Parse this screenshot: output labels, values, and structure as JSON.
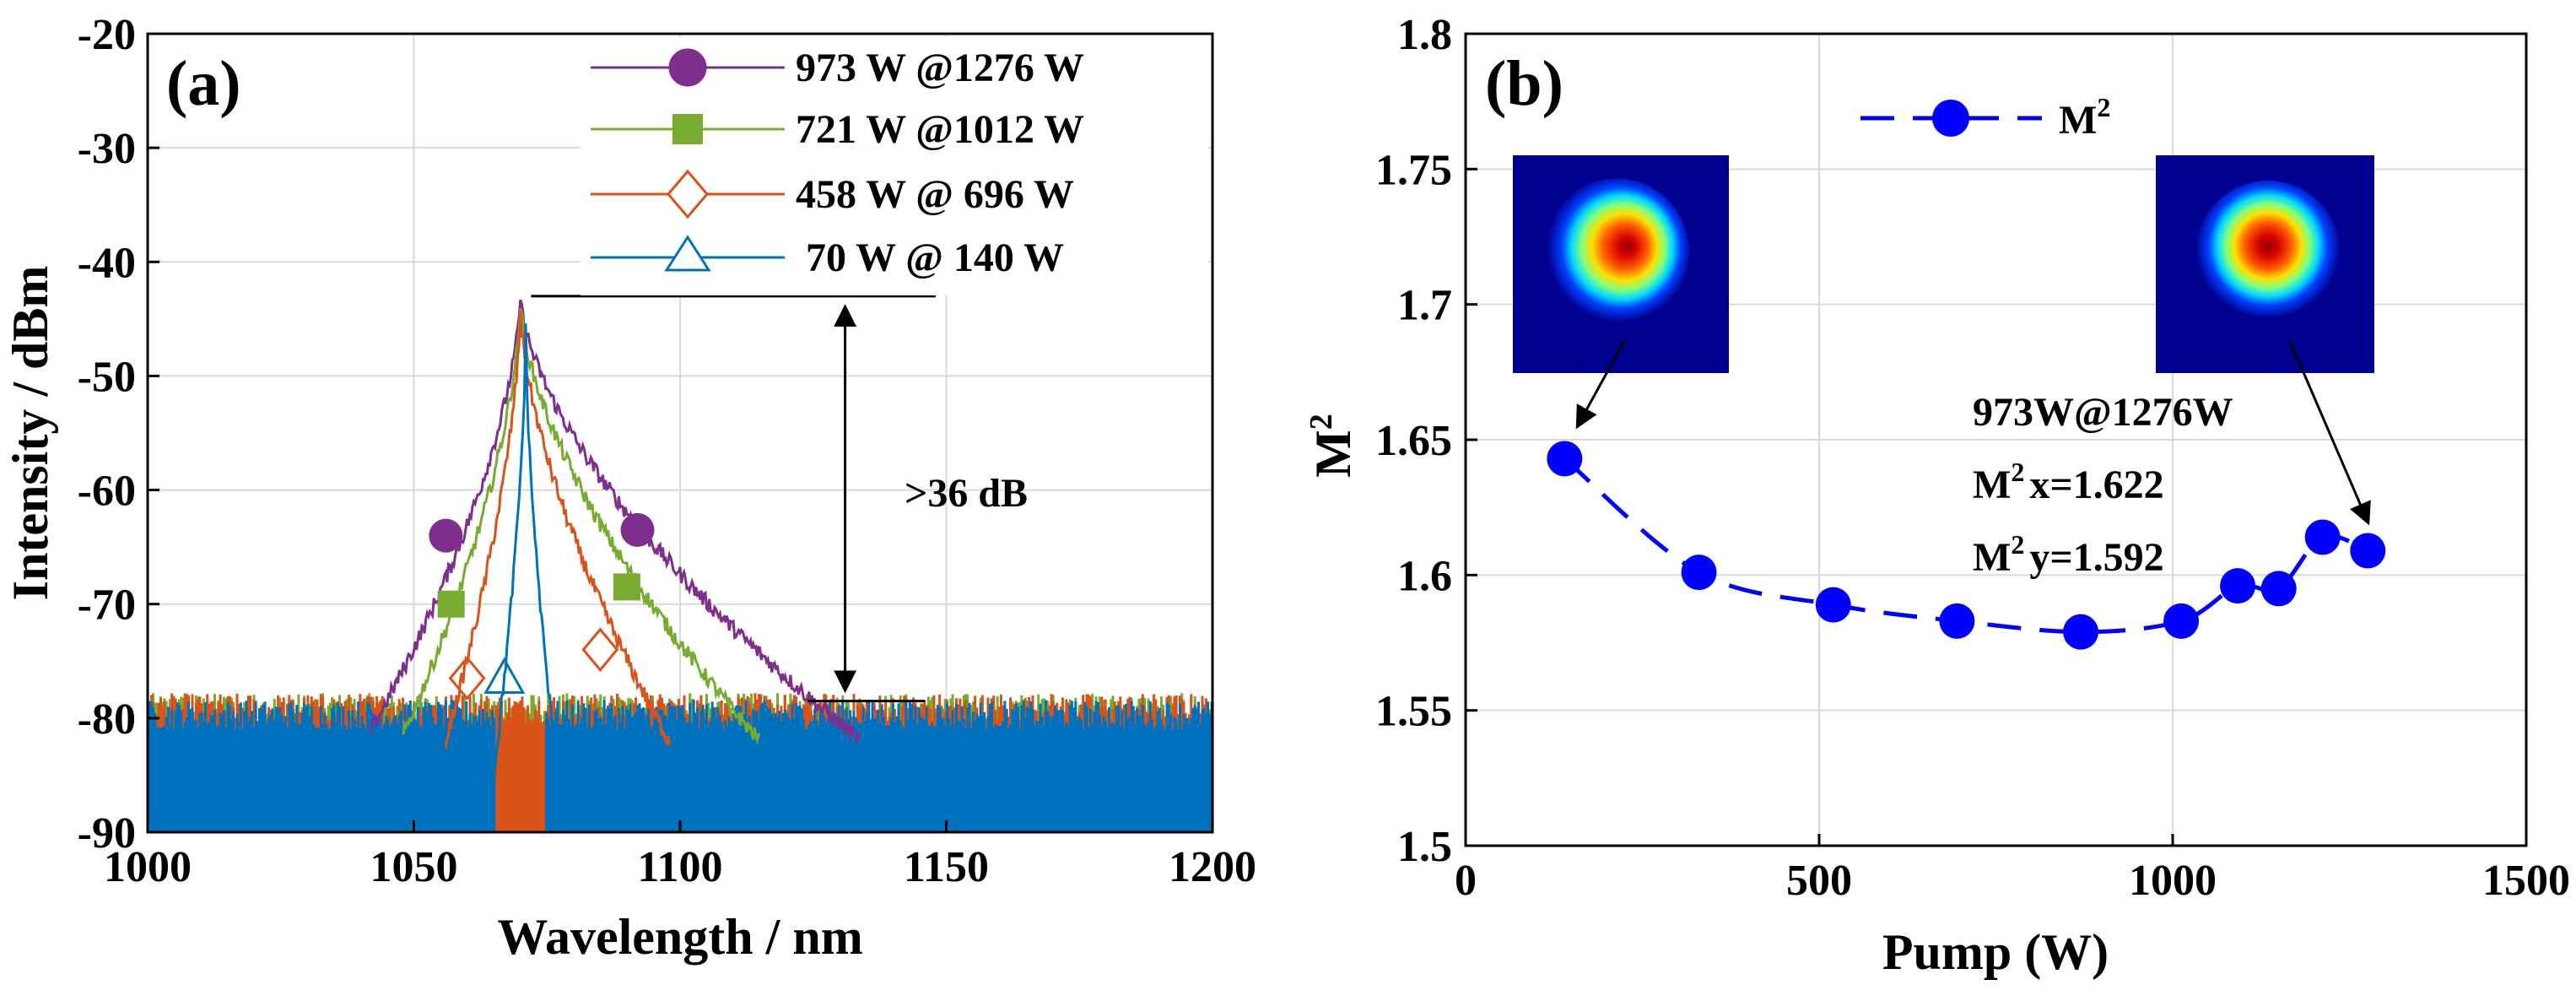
{
  "chart_data": [
    {
      "type": "line",
      "panel_label": "(a)",
      "xlabel": "Wavelength / nm",
      "ylabel": "Intensity / dBm",
      "xlim": [
        1000,
        1200
      ],
      "ylim": [
        -90,
        -20
      ],
      "xticks": [
        "1000",
        "1050",
        "1100",
        "1150",
        "1200"
      ],
      "yticks": [
        "-20",
        "-30",
        "-40",
        "-50",
        "-60",
        "-70",
        "-80",
        "-90"
      ],
      "grid": true,
      "legend": "top-right",
      "noise_floor_dbm": -83,
      "series": [
        {
          "name": "973 W @1276 W",
          "color": "#7E2F8E",
          "marker": "filled-circle",
          "peak_wavelength": 1070,
          "peak_dbm": -43,
          "edge_left_dbm": -81,
          "edge_right_dbm": -82,
          "half_width_left": 28,
          "half_width_right": 64,
          "marker_points": [
            [
              1056,
              -64
            ],
            [
              1092,
              -63.5
            ]
          ]
        },
        {
          "name": "721 W @1012 W",
          "color": "#77AC30",
          "marker": "filled-square",
          "peak_wavelength": 1070,
          "peak_dbm": -43.5,
          "edge_left_dbm": -81.5,
          "edge_right_dbm": -82,
          "half_width_left": 22,
          "half_width_right": 45,
          "marker_points": [
            [
              1057,
              -70
            ],
            [
              1090,
              -68.5
            ]
          ]
        },
        {
          "name": "458 W @ 696 W",
          "color": "#D95319",
          "marker": "open-diamond",
          "peak_wavelength": 1070,
          "peak_dbm": -44,
          "edge_left_dbm": -82,
          "edge_right_dbm": -82,
          "half_width_left": 14,
          "half_width_right": 28,
          "marker_points": [
            [
              1060,
              -76.5
            ],
            [
              1085,
              -74
            ]
          ]
        },
        {
          "name": "70 W @ 140 W",
          "color": "#0072BD",
          "marker": "open-triangle",
          "peak_wavelength": 1071,
          "peak_dbm": -46,
          "edge_left_dbm": -85,
          "edge_right_dbm": -85,
          "half_width_left": 6,
          "half_width_right": 6,
          "marker_points": [
            [
              1067,
              -76.5
            ]
          ]
        }
      ],
      "annotations": {
        "snr_text": ">36 dB",
        "snr_top_dbm": -43,
        "snr_bottom_dbm": -78.5,
        "snr_arrow_wavelength": 1131
      }
    },
    {
      "type": "line",
      "panel_label": "(b)",
      "xlabel": "Pump (W)",
      "ylabel": "M",
      "ylabel_sup": "2",
      "xlim": [
        0,
        1500
      ],
      "ylim": [
        1.5,
        1.8
      ],
      "xticks": [
        "0",
        "500",
        "1000",
        "1500"
      ],
      "yticks": [
        "1.8",
        "1.75",
        "1.7",
        "1.65",
        "1.6",
        "1.55",
        "1.5"
      ],
      "grid": true,
      "legend": "top-center",
      "series": [
        {
          "name": "M",
          "name_sup": "2",
          "color": "#0000FF",
          "marker": "filled-circle",
          "line_style": "dashed",
          "x": [
            140,
            330,
            520,
            695,
            870,
            1012,
            1092,
            1150,
            1212,
            1276
          ],
          "y": [
            1.643,
            1.601,
            1.589,
            1.583,
            1.579,
            1.583,
            1.596,
            1.595,
            1.614,
            1.609
          ]
        }
      ],
      "annotations": {
        "condition_line": "973W@1276W",
        "m2x_label": "M",
        "m2x_sup": "2",
        "m2x_value": "x=1.622",
        "m2y_label": "M",
        "m2y_sup": "2",
        "m2y_value": "y=1.592",
        "beam_profile_insets": [
          "beam-profile-140W",
          "beam-profile-1276W"
        ]
      }
    }
  ]
}
